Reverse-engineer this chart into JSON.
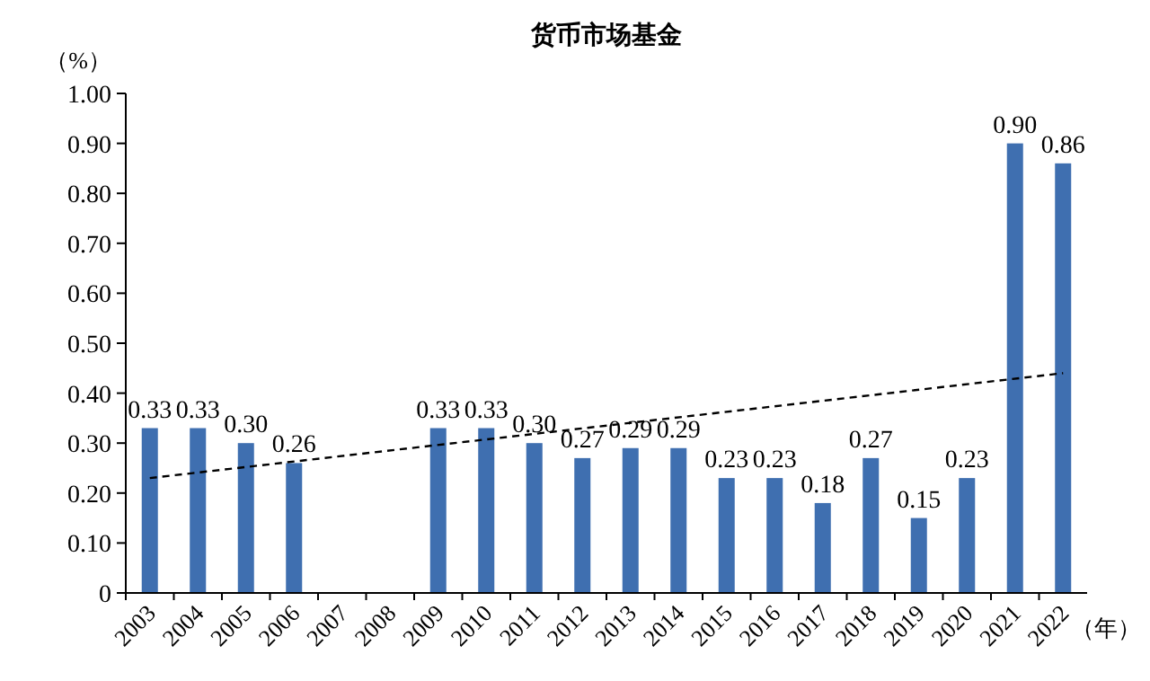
{
  "chart_data": {
    "type": "bar",
    "title": "货币市场基金",
    "ylabel": "（%）",
    "xlabel": "（年）",
    "categories": [
      "2003",
      "2004",
      "2005",
      "2006",
      "2007",
      "2008",
      "2009",
      "2010",
      "2011",
      "2012",
      "2013",
      "2014",
      "2015",
      "2016",
      "2017",
      "2018",
      "2019",
      "2020",
      "2021",
      "2022"
    ],
    "ylim": [
      0,
      1.0
    ],
    "yticks": [
      0,
      {
        "value": 0.1,
        "label": "0.10"
      },
      {
        "value": 0.2,
        "label": "0.20"
      },
      {
        "value": 0.3,
        "label": "0.30"
      },
      {
        "value": 0.4,
        "label": "0.40"
      },
      {
        "value": 0.5,
        "label": "0.50"
      },
      {
        "value": 0.6,
        "label": "0.60"
      },
      {
        "value": 0.7,
        "label": "0.70"
      },
      {
        "value": 0.8,
        "label": "0.80"
      },
      {
        "value": 0.9,
        "label": "0.90"
      },
      {
        "value": 1.0,
        "label": "1.00"
      }
    ],
    "grid": false,
    "series": [
      {
        "color": "#3f6fb0",
        "values": [
          0.33,
          0.33,
          0.3,
          0.26,
          null,
          null,
          0.33,
          0.33,
          0.3,
          0.27,
          0.29,
          0.29,
          0.23,
          0.23,
          0.18,
          0.27,
          0.15,
          0.23,
          0.9,
          0.86
        ],
        "value_labels": [
          "0.33",
          "0.33",
          "0.30",
          "0.26",
          null,
          null,
          "0.33",
          "0.33",
          "0.30",
          "0.27",
          "0.29",
          "0.29",
          "0.23",
          "0.23",
          "0.18",
          "0.27",
          "0.15",
          "0.23",
          "0.90",
          "0.86"
        ]
      },
      {
        "type": "line",
        "color": "#000000",
        "line_style": "dashed",
        "values": [
          0.23,
          null,
          null,
          null,
          null,
          null,
          null,
          null,
          null,
          null,
          null,
          null,
          null,
          null,
          null,
          null,
          null,
          null,
          null,
          0.44
        ]
      }
    ]
  }
}
